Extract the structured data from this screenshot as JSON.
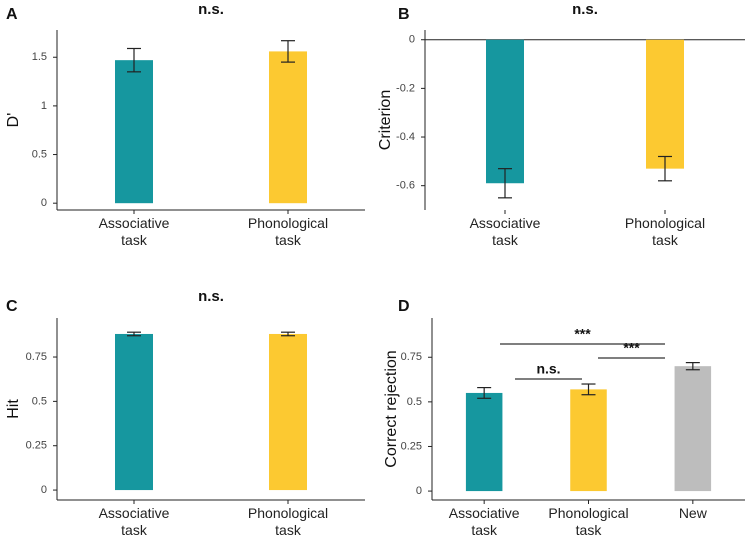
{
  "chart_data": [
    {
      "type": "bar",
      "panel": "A",
      "title": "n.s.",
      "ylabel": "D'",
      "categories": [
        "Associative task",
        "Phonological task"
      ],
      "values": [
        1.47,
        1.56
      ],
      "errors": [
        0.12,
        0.11
      ],
      "colors": [
        "#16979f",
        "#fcc931"
      ],
      "ylim": [
        -0.07,
        1.78
      ],
      "yticks": [
        0,
        0.5,
        1,
        1.5
      ]
    },
    {
      "type": "bar",
      "panel": "B",
      "title": "n.s.",
      "ylabel": "Criterion",
      "categories": [
        "Associative task",
        "Phonological task"
      ],
      "values": [
        -0.59,
        -0.53
      ],
      "errors": [
        0.06,
        0.05
      ],
      "colors": [
        "#16979f",
        "#fcc931"
      ],
      "ylim": [
        -0.7,
        0.04
      ],
      "yticks": [
        0,
        -0.2,
        -0.4,
        -0.6
      ]
    },
    {
      "type": "bar",
      "panel": "C",
      "title": "n.s.",
      "ylabel": "Hit",
      "categories": [
        "Associative task",
        "Phonological task"
      ],
      "values": [
        0.88,
        0.88
      ],
      "errors": [
        0.01,
        0.01
      ],
      "colors": [
        "#16979f",
        "#fcc931"
      ],
      "ylim": [
        -0.056,
        0.97
      ],
      "yticks": [
        0,
        0.25,
        0.5,
        0.75
      ]
    },
    {
      "type": "bar",
      "panel": "D",
      "ylabel": "Correct rejection",
      "categories": [
        "Associative task",
        "Phonological task",
        "New"
      ],
      "values": [
        0.55,
        0.57,
        0.7
      ],
      "errors": [
        0.03,
        0.03,
        0.02
      ],
      "colors": [
        "#16979f",
        "#fcc931",
        "#bdbdbd"
      ],
      "ylim": [
        -0.05,
        0.97
      ],
      "yticks": [
        0,
        0.25,
        0.5,
        0.75
      ],
      "annotations": [
        "***",
        "n.s.",
        "***"
      ]
    }
  ]
}
